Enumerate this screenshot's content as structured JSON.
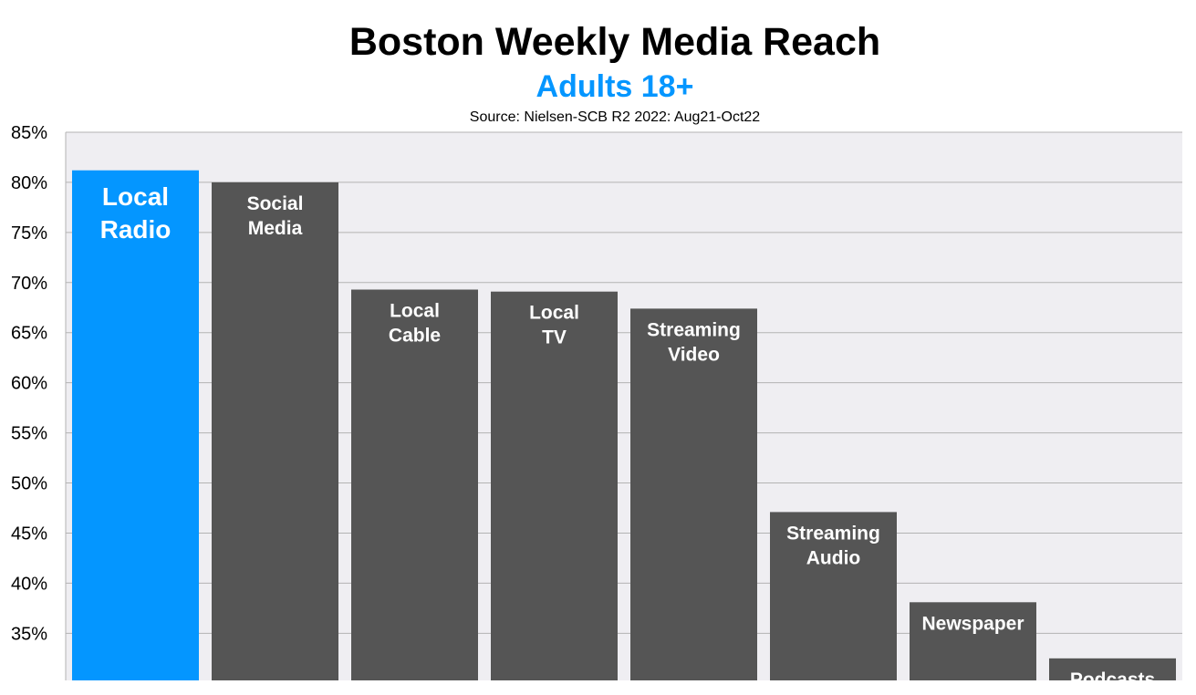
{
  "chart_data": {
    "type": "bar",
    "title": "Boston Weekly Media Reach",
    "subtitle": "Adults 18+",
    "source": "Source: Nielsen-SCB R2 2022: Aug21-Oct22",
    "categories": [
      "Local Radio",
      "Social Media",
      "Local Cable",
      "Local TV",
      "Streaming Video",
      "Streaming Audio",
      "Newspaper",
      "Podcasts"
    ],
    "label_lines": [
      [
        "Local",
        "Radio"
      ],
      [
        "Social",
        "Media"
      ],
      [
        "Local",
        "Cable"
      ],
      [
        "Local",
        "TV"
      ],
      [
        "Streaming",
        "Video"
      ],
      [
        "Streaming",
        "Audio"
      ],
      [
        "Newspaper"
      ],
      [
        "Podcasts"
      ]
    ],
    "values": [
      81.2,
      80.0,
      69.3,
      69.1,
      67.4,
      47.1,
      38.1,
      32.5
    ],
    "ylim": [
      30.3,
      85
    ],
    "yticks": [
      35,
      40,
      45,
      50,
      55,
      60,
      65,
      70,
      75,
      80,
      85
    ],
    "ytick_labels": [
      "35%",
      "40%",
      "45%",
      "50%",
      "55%",
      "60%",
      "65%",
      "70%",
      "75%",
      "80%",
      "85%"
    ],
    "grid": true,
    "legend": "none",
    "highlight_index": 0,
    "colors": {
      "highlight": "#0496FF",
      "bar": "#555555",
      "plot_bg": "#EFEEF2",
      "grid": "#B3B3B3",
      "subtitle": "#0496FF"
    }
  }
}
